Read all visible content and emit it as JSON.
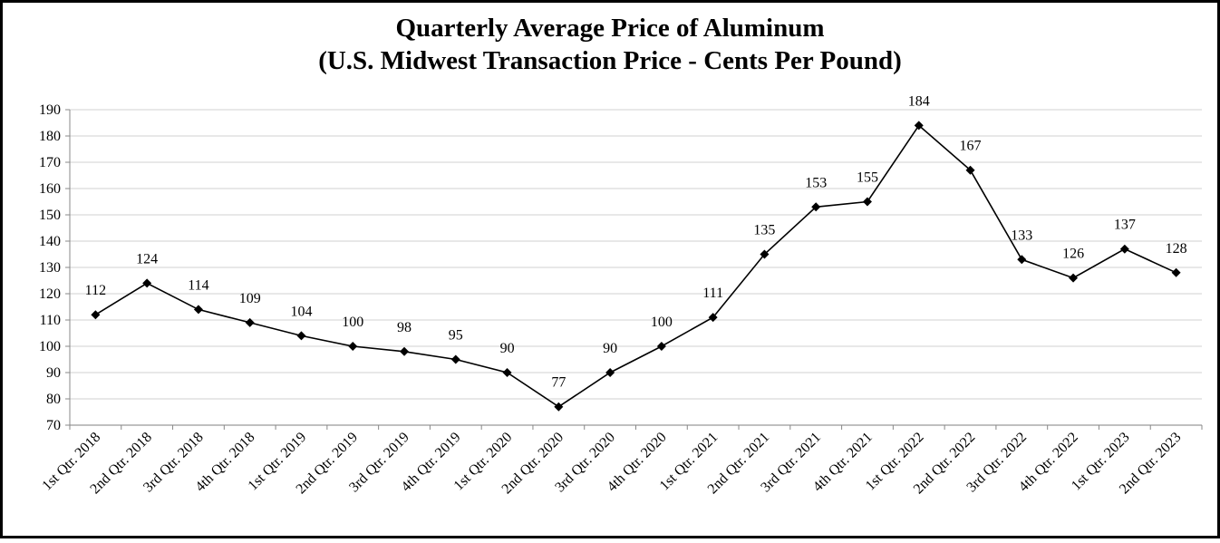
{
  "chart_data": {
    "type": "line",
    "title": "Quarterly Average Price of Aluminum",
    "subtitle": "(U.S. Midwest Transaction Price - Cents Per Pound)",
    "categories": [
      "1st Qtr. 2018",
      "2nd Qtr. 2018",
      "3rd Qtr. 2018",
      "4th Qtr. 2018",
      "1st Qtr. 2019",
      "2nd Qtr. 2019",
      "3rd Qtr. 2019",
      "4th Qtr. 2019",
      "1st Qtr. 2020",
      "2nd Qtr. 2020",
      "3rd Qtr. 2020",
      "4th Qtr. 2020",
      "1st Qtr. 2021",
      "2nd Qtr. 2021",
      "3rd Qtr. 2021",
      "4th Qtr. 2021",
      "1st Qtr. 2022",
      "2nd Qtr. 2022",
      "3rd Qtr. 2022",
      "4th Qtr. 2022",
      "1st Qtr. 2023",
      "2nd Qtr. 2023"
    ],
    "values": [
      112,
      124,
      114,
      109,
      104,
      100,
      98,
      95,
      90,
      77,
      90,
      100,
      111,
      135,
      153,
      155,
      184,
      167,
      133,
      126,
      137,
      128
    ],
    "color": "#000000",
    "ylim": [
      70,
      190
    ],
    "yticks": [
      70,
      80,
      90,
      100,
      110,
      120,
      130,
      140,
      150,
      160,
      170,
      180,
      190
    ],
    "grid": true
  }
}
